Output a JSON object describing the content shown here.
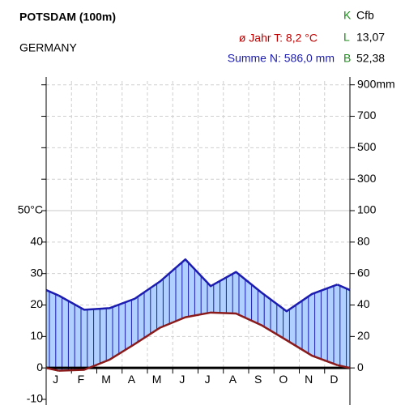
{
  "chart_data": {
    "type": "climate",
    "title": "POTSDAM (100m)",
    "subtitle": "GERMANY",
    "stats": {
      "temperature": "ø Jahr T: 8,2 °C",
      "precipitation": "Summe N: 586,0 mm"
    },
    "coordinates": [
      {
        "key": "K",
        "value": "Cfb"
      },
      {
        "key": "L",
        "value": "13,07"
      },
      {
        "key": "B",
        "value": "52,38"
      }
    ],
    "categories": [
      "J",
      "F",
      "M",
      "A",
      "M",
      "J",
      "J",
      "A",
      "S",
      "O",
      "N",
      "D"
    ],
    "series": [
      {
        "color": "#8b1a1a",
        "values": [
          -0.9,
          -0.6,
          2.6,
          7.6,
          12.8,
          16.1,
          17.6,
          17.3,
          13.6,
          8.8,
          3.9,
          0.9
        ]
      },
      {
        "color": "#1c1cb0",
        "axis": "y2",
        "values": [
          46,
          37,
          38,
          44,
          55,
          69,
          52,
          61,
          48,
          36,
          47,
          53
        ]
      }
    ],
    "humid_fill": "#b0d0ff",
    "ylim": [
      -10,
      92.5
    ],
    "yticks": [
      -10,
      0,
      10,
      20,
      30,
      40,
      {
        "value": 50,
        "label": "50°C"
      }
    ],
    "y2lim": [
      -20,
      950
    ],
    "y2_break": [
      100,
      50
    ],
    "y2ticks": [
      0,
      20,
      40,
      60,
      80,
      100,
      300,
      500,
      700,
      {
        "value": 900,
        "label": "900mm"
      }
    ],
    "grid": true
  }
}
